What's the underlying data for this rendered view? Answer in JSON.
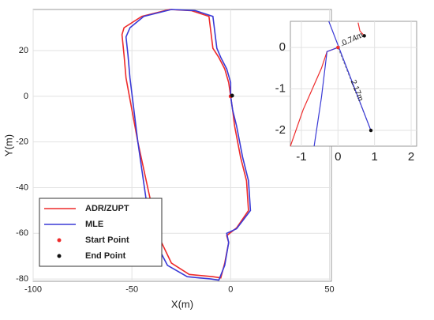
{
  "chart_data": [
    {
      "type": "line",
      "x_label": "X(m)",
      "y_label": "Y(m)",
      "xlim": [
        -100,
        51
      ],
      "ylim": [
        -81,
        38
      ],
      "xticks": [
        -100,
        -50,
        0,
        50
      ],
      "yticks": [
        -80,
        -60,
        -40,
        -20,
        0,
        20
      ],
      "grid": true,
      "legend": "lower left",
      "series": [
        {
          "name": "ADR/ZUPT",
          "color": "#ee2b2b",
          "style": "line",
          "x": [
            0,
            -1,
            -3,
            -6,
            -9,
            -11,
            -20,
            -31,
            -45,
            -54,
            -55,
            -54,
            -53,
            -50,
            -47,
            -44,
            -41,
            -38,
            -35,
            -30,
            -21,
            -9,
            -5,
            -3,
            -1,
            -2,
            3,
            9,
            8,
            5,
            2,
            1,
            0
          ],
          "values": [
            0,
            6,
            12,
            17,
            21,
            35,
            37.5,
            38,
            35,
            30,
            27,
            18,
            8,
            -6,
            -20,
            -32,
            -44,
            -54,
            -64,
            -73,
            -78,
            -79,
            -79.5,
            -73,
            -64,
            -61,
            -57.6,
            -50,
            -37,
            -26.6,
            -13,
            -6,
            0
          ]
        },
        {
          "name": "MLE",
          "color": "#3a3ad6",
          "style": "line",
          "x": [
            0,
            0,
            -2,
            -5,
            -7,
            -9,
            -18,
            -30,
            -44,
            -51,
            -53,
            -52,
            -51,
            -49,
            -47,
            -45,
            -43,
            -41,
            -38,
            -32,
            -22,
            -10,
            -6,
            -3,
            -1,
            -2,
            3,
            10,
            9,
            6,
            3,
            1,
            0
          ],
          "values": [
            0,
            6,
            12,
            17,
            21,
            35,
            37.5,
            38,
            35,
            30,
            26,
            18,
            8,
            -6,
            -20,
            -32,
            -44,
            -54,
            -64,
            -74,
            -79,
            -80,
            -80.5,
            -74,
            -64,
            -60,
            -58,
            -50,
            -37,
            -26.6,
            -13,
            -6,
            0
          ]
        },
        {
          "name": "Start Point",
          "color": "#ee2b2b",
          "style": "dot",
          "x": [
            0
          ],
          "values": [
            0
          ]
        },
        {
          "name": "End  Point",
          "color": "#111111",
          "style": "dot",
          "x": [
            0.72
          ],
          "values": [
            0.28
          ]
        }
      ]
    },
    {
      "type": "line",
      "xlim": [
        -1.3,
        2.15
      ],
      "ylim": [
        -2.38,
        0.63
      ],
      "xticks": [
        -1,
        0,
        1,
        2
      ],
      "yticks": [
        -2,
        -1,
        0
      ],
      "grid": true,
      "series": [
        {
          "color": "#888888",
          "style": "dashed",
          "x": [
            0,
            0.72
          ],
          "values": [
            0,
            0.28
          ]
        },
        {
          "color": "#888888",
          "style": "dashed",
          "x": [
            0,
            0.9
          ],
          "values": [
            0,
            -2
          ]
        },
        {
          "color": "#ee2b2b",
          "style": "line",
          "x": [
            0.72,
            0.6,
            0.55,
            null,
            0,
            -0.3,
            -0.45,
            -0.7,
            -0.95,
            -1.15,
            -1.3
          ],
          "values": [
            0.28,
            0.4,
            0.6,
            null,
            0,
            -0.1,
            -0.5,
            -1,
            -1.5,
            -2,
            -2.38
          ]
        },
        {
          "color": "#3a3ad6",
          "style": "line",
          "x": [
            -0.25,
            0.9,
            null,
            0,
            -0.3,
            -0.45,
            -0.65
          ],
          "values": [
            0.63,
            -2,
            null,
            0,
            -0.1,
            -1.2,
            -2.38
          ]
        },
        {
          "color": "#ee2b2b",
          "style": "dot",
          "x": [
            0
          ],
          "values": [
            0
          ]
        },
        {
          "color": "#111111",
          "style": "dot",
          "x": [
            0.72,
            0.9
          ],
          "values": [
            0.28,
            -2
          ]
        }
      ],
      "annotations": [
        "0.74m",
        "2.17m"
      ]
    }
  ]
}
